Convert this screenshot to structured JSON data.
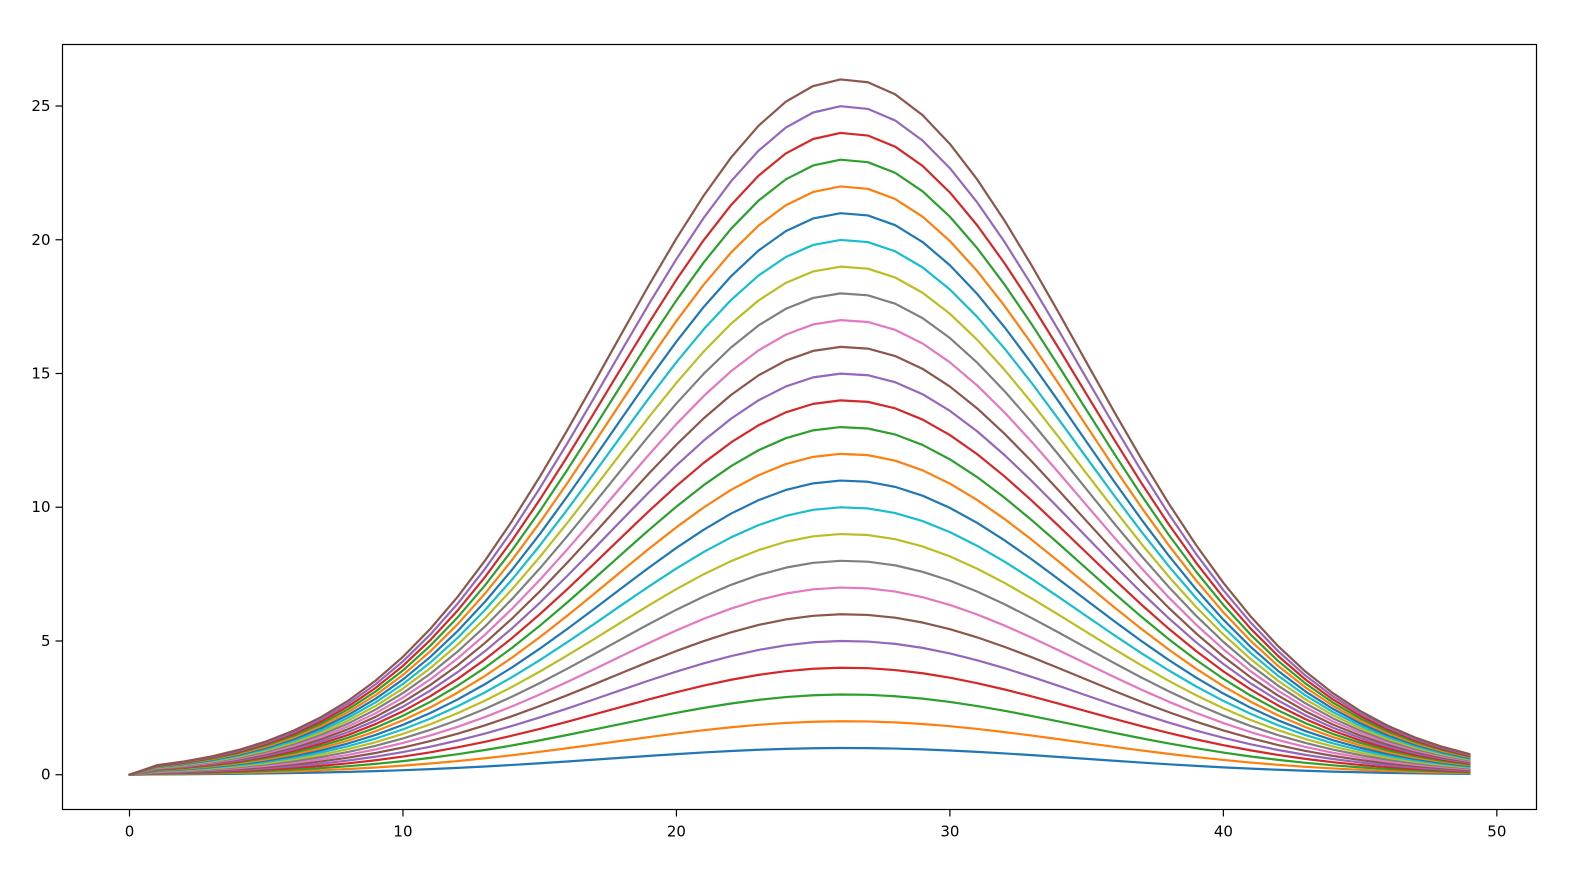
{
  "chart_data": {
    "type": "line",
    "title": "",
    "xlabel": "",
    "ylabel": "",
    "xlim": [
      -2.45,
      51.45
    ],
    "ylim": [
      -1.3,
      27.3
    ],
    "grid": false,
    "legend": "none",
    "x_ticks": [
      0,
      10,
      20,
      30,
      40,
      50
    ],
    "y_ticks": [
      0,
      5,
      10,
      15,
      20,
      25
    ],
    "x_tick_labels": [
      "0",
      "10",
      "20",
      "30",
      "40",
      "50"
    ],
    "y_tick_labels": [
      "0",
      "5",
      "10",
      "15",
      "20",
      "25"
    ],
    "x": [
      0,
      1,
      2,
      3,
      4,
      5,
      6,
      7,
      8,
      9,
      10,
      11,
      12,
      13,
      14,
      15,
      16,
      17,
      18,
      19,
      20,
      21,
      22,
      23,
      24,
      25,
      26,
      27,
      28,
      29,
      30,
      31,
      32,
      33,
      34,
      35,
      36,
      37,
      38,
      39,
      40,
      41,
      42,
      43,
      44,
      45,
      46,
      47,
      48,
      49
    ],
    "series_formula": "y_k(x) = k * exp(-((x - 26.2)^2) / (2 * 8.6^2)) for x >= 1, y_k(0) = 0",
    "series": [
      {
        "amplitude": 1,
        "color": "#1f77b4"
      },
      {
        "amplitude": 2,
        "color": "#ff7f0e"
      },
      {
        "amplitude": 3,
        "color": "#2ca02c"
      },
      {
        "amplitude": 4,
        "color": "#d62728"
      },
      {
        "amplitude": 5,
        "color": "#9467bd"
      },
      {
        "amplitude": 6,
        "color": "#8c564b"
      },
      {
        "amplitude": 7,
        "color": "#e377c2"
      },
      {
        "amplitude": 8,
        "color": "#7f7f7f"
      },
      {
        "amplitude": 9,
        "color": "#bcbd22"
      },
      {
        "amplitude": 10,
        "color": "#17becf"
      },
      {
        "amplitude": 11,
        "color": "#1f77b4"
      },
      {
        "amplitude": 12,
        "color": "#ff7f0e"
      },
      {
        "amplitude": 13,
        "color": "#2ca02c"
      },
      {
        "amplitude": 14,
        "color": "#d62728"
      },
      {
        "amplitude": 15,
        "color": "#9467bd"
      },
      {
        "amplitude": 16,
        "color": "#8c564b"
      },
      {
        "amplitude": 17,
        "color": "#e377c2"
      },
      {
        "amplitude": 18,
        "color": "#7f7f7f"
      },
      {
        "amplitude": 19,
        "color": "#bcbd22"
      },
      {
        "amplitude": 20,
        "color": "#17becf"
      },
      {
        "amplitude": 21,
        "color": "#1f77b4"
      },
      {
        "amplitude": 22,
        "color": "#ff7f0e"
      },
      {
        "amplitude": 23,
        "color": "#2ca02c"
      },
      {
        "amplitude": 24,
        "color": "#d62728"
      },
      {
        "amplitude": 25,
        "color": "#9467bd"
      },
      {
        "amplitude": 26,
        "color": "#8c564b"
      }
    ],
    "peak_x": 26.2,
    "spread": 8.6
  }
}
